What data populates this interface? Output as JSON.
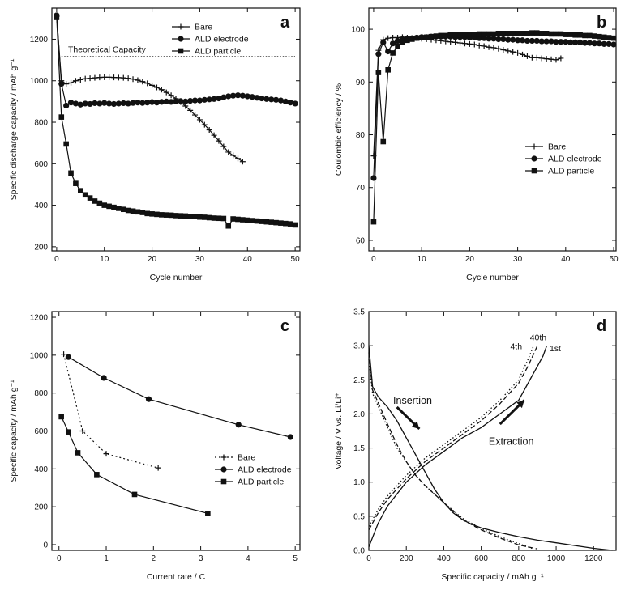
{
  "chart_data": [
    {
      "panel": "a",
      "type": "line",
      "title": "",
      "letter": "a",
      "xlabel": "Cycle number",
      "ylabel": "Specific discharge capacity / mAh g⁻¹",
      "xlim": [
        -1,
        51
      ],
      "ylim": [
        180,
        1350
      ],
      "xticks": [
        0,
        10,
        20,
        30,
        40,
        50
      ],
      "yticks": [
        200,
        400,
        600,
        800,
        1000,
        1200
      ],
      "legend": "top-right",
      "reference_line": {
        "label": "Theoretical Capacity",
        "y": 1117
      },
      "series": [
        {
          "name": "Bare",
          "marker": "plus",
          "dash": "",
          "x": [
            0,
            1,
            2,
            3,
            4,
            5,
            6,
            7,
            8,
            9,
            10,
            11,
            12,
            13,
            14,
            15,
            16,
            17,
            18,
            19,
            20,
            21,
            22,
            23,
            24,
            25,
            26,
            27,
            28,
            29,
            30,
            31,
            32,
            33,
            34,
            35,
            36,
            37,
            38,
            39
          ],
          "y": [
            1310,
            1000,
            985,
            990,
            1000,
            1005,
            1010,
            1012,
            1014,
            1016,
            1017,
            1017,
            1016,
            1015,
            1014,
            1012,
            1008,
            1003,
            996,
            988,
            978,
            968,
            957,
            944,
            930,
            914,
            897,
            878,
            857,
            835,
            812,
            788,
            763,
            737,
            710,
            683,
            656,
            640,
            625,
            610
          ]
        },
        {
          "name": "ALD electrode",
          "marker": "circle",
          "dash": "",
          "x": [
            0,
            1,
            2,
            3,
            4,
            5,
            6,
            7,
            8,
            9,
            10,
            11,
            12,
            13,
            14,
            15,
            16,
            17,
            18,
            19,
            20,
            21,
            22,
            23,
            24,
            25,
            26,
            27,
            28,
            29,
            30,
            31,
            32,
            33,
            34,
            35,
            36,
            37,
            38,
            39,
            40,
            41,
            42,
            43,
            44,
            45,
            46,
            47,
            48,
            49,
            50
          ],
          "y": [
            1315,
            985,
            880,
            895,
            890,
            885,
            890,
            888,
            892,
            890,
            893,
            890,
            888,
            890,
            892,
            890,
            893,
            895,
            893,
            895,
            897,
            895,
            898,
            900,
            898,
            900,
            902,
            900,
            903,
            905,
            905,
            908,
            910,
            912,
            915,
            920,
            925,
            928,
            930,
            928,
            925,
            922,
            918,
            915,
            912,
            910,
            908,
            905,
            900,
            895,
            890
          ]
        },
        {
          "name": "ALD particle",
          "marker": "square",
          "dash": "",
          "x": [
            0,
            1,
            2,
            3,
            4,
            5,
            6,
            7,
            8,
            9,
            10,
            11,
            12,
            13,
            14,
            15,
            16,
            17,
            18,
            19,
            20,
            21,
            22,
            23,
            24,
            25,
            26,
            27,
            28,
            29,
            30,
            31,
            32,
            33,
            34,
            35,
            36,
            37,
            38,
            39,
            40,
            41,
            42,
            43,
            44,
            45,
            46,
            47,
            48,
            49,
            50
          ],
          "y": [
            1305,
            825,
            695,
            555,
            505,
            470,
            450,
            435,
            420,
            410,
            400,
            395,
            390,
            385,
            380,
            375,
            372,
            368,
            365,
            360,
            358,
            356,
            354,
            353,
            352,
            350,
            349,
            348,
            346,
            345,
            343,
            342,
            340,
            338,
            337,
            336,
            300,
            334,
            332,
            330,
            328,
            326,
            324,
            322,
            320,
            318,
            316,
            314,
            312,
            310,
            305
          ]
        }
      ]
    },
    {
      "panel": "b",
      "type": "line",
      "title": "",
      "letter": "b",
      "xlabel": "Cycle number",
      "ylabel": "Coulombic efficiency / %",
      "xlim": [
        -1,
        50.5
      ],
      "ylim": [
        58,
        104
      ],
      "xticks": [
        0,
        10,
        20,
        30,
        40,
        50
      ],
      "yticks": [
        60,
        70,
        80,
        90,
        100
      ],
      "legend": "center-right",
      "series": [
        {
          "name": "Bare",
          "marker": "plus",
          "dash": "",
          "x": [
            0,
            1,
            2,
            3,
            4,
            5,
            6,
            7,
            8,
            9,
            10,
            11,
            12,
            13,
            14,
            15,
            16,
            17,
            18,
            19,
            20,
            21,
            22,
            23,
            24,
            25,
            26,
            27,
            28,
            29,
            30,
            31,
            32,
            33,
            34,
            35,
            36,
            37,
            38,
            39
          ],
          "y": [
            76,
            96,
            98,
            98.3,
            98.4,
            98.4,
            98.5,
            98.4,
            98.3,
            98.3,
            98.2,
            98.1,
            98,
            97.9,
            97.8,
            97.7,
            97.6,
            97.5,
            97.4,
            97.3,
            97.2,
            97.1,
            96.9,
            96.8,
            96.6,
            96.5,
            96.3,
            96.1,
            95.9,
            95.7,
            95.5,
            95.2,
            94.9,
            94.6,
            94.6,
            94.5,
            94.4,
            94.3,
            94.2,
            94.5
          ]
        },
        {
          "name": "ALD electrode",
          "marker": "circle",
          "dash": "",
          "x": [
            0,
            1,
            2,
            3,
            4,
            5,
            6,
            7,
            8,
            9,
            10,
            11,
            12,
            13,
            14,
            15,
            16,
            17,
            18,
            19,
            20,
            21,
            22,
            23,
            24,
            25,
            26,
            27,
            28,
            29,
            30,
            31,
            32,
            33,
            34,
            35,
            36,
            37,
            38,
            39,
            40,
            41,
            42,
            43,
            44,
            45,
            46,
            47,
            48,
            49,
            50
          ],
          "y": [
            71.8,
            95.3,
            97.5,
            95.8,
            97.3,
            97.8,
            98.1,
            98.2,
            98.3,
            98.4,
            98.5,
            98.5,
            98.6,
            98.6,
            98.6,
            98.6,
            98.6,
            98.5,
            98.5,
            98.5,
            98.4,
            98.4,
            98.3,
            98.3,
            98.2,
            98.2,
            98.1,
            98.1,
            98.0,
            98.0,
            97.9,
            97.9,
            97.8,
            97.8,
            97.8,
            97.7,
            97.7,
            97.7,
            97.6,
            97.6,
            97.6,
            97.5,
            97.5,
            97.5,
            97.4,
            97.4,
            97.3,
            97.3,
            97.2,
            97.2,
            97.1
          ]
        },
        {
          "name": "ALD particle",
          "marker": "square",
          "dash": "",
          "x": [
            0,
            1,
            2,
            3,
            4,
            5,
            6,
            7,
            8,
            9,
            10,
            11,
            12,
            13,
            14,
            15,
            16,
            17,
            18,
            19,
            20,
            21,
            22,
            23,
            24,
            25,
            26,
            27,
            28,
            29,
            30,
            31,
            32,
            33,
            34,
            35,
            36,
            37,
            38,
            39,
            40,
            41,
            42,
            43,
            44,
            45,
            46,
            47,
            48,
            49,
            50
          ],
          "y": [
            63.5,
            91.8,
            78.7,
            92.3,
            95.5,
            96.8,
            97.5,
            97.9,
            98.1,
            98.3,
            98.4,
            98.5,
            98.6,
            98.7,
            98.8,
            98.8,
            98.9,
            98.9,
            98.9,
            99.0,
            99.0,
            99.0,
            99.1,
            99.1,
            99.1,
            99.1,
            99.2,
            99.2,
            99.2,
            99.2,
            99.2,
            99.2,
            99.2,
            99.3,
            99.3,
            99.2,
            99.2,
            99.1,
            99.1,
            99.1,
            99.0,
            99.0,
            98.9,
            98.9,
            98.8,
            98.8,
            98.7,
            98.6,
            98.5,
            98.4,
            98.3
          ]
        }
      ]
    },
    {
      "panel": "c",
      "type": "line",
      "title": "",
      "letter": "c",
      "xlabel": "Current rate / C",
      "ylabel": "Specific capacity / mAh g⁻¹",
      "xlim": [
        -0.15,
        5.1
      ],
      "ylim": [
        -30,
        1230
      ],
      "xticks": [
        0,
        1,
        2,
        3,
        4,
        5
      ],
      "yticks": [
        0,
        200,
        400,
        600,
        800,
        1000,
        1200
      ],
      "legend": "center-right",
      "series": [
        {
          "name": "Bare",
          "marker": "plus",
          "dash": "2,3",
          "x": [
            0.1,
            0.5,
            1.0,
            2.1
          ],
          "y": [
            1005,
            600,
            480,
            405
          ]
        },
        {
          "name": "ALD electrode",
          "marker": "circle",
          "dash": "",
          "x": [
            0.2,
            0.95,
            1.9,
            3.8,
            4.9
          ],
          "y": [
            990,
            880,
            768,
            633,
            568
          ]
        },
        {
          "name": "ALD particle",
          "marker": "square",
          "dash": "",
          "x": [
            0.05,
            0.2,
            0.4,
            0.8,
            1.6,
            3.15
          ],
          "y": [
            675,
            595,
            485,
            370,
            265,
            165
          ]
        }
      ]
    },
    {
      "panel": "d",
      "type": "line",
      "title": "",
      "letter": "d",
      "xlabel": "Specific capacity / mAh g⁻¹",
      "ylabel": "Voltage / V vs. Li/Li⁺",
      "xlim": [
        0,
        1320
      ],
      "ylim": [
        0,
        3.5
      ],
      "xticks": [
        0,
        200,
        400,
        600,
        800,
        1000,
        1200
      ],
      "yticks": [
        0.0,
        0.5,
        1.0,
        1.5,
        2.0,
        2.5,
        3.0,
        3.5
      ],
      "legend": "none",
      "annotations": [
        {
          "text": "Insertion",
          "at": [
            130,
            2.15
          ]
        },
        {
          "text": "Extraction",
          "at": [
            640,
            1.55
          ]
        },
        {
          "text": "4th",
          "at": [
            755,
            2.95
          ]
        },
        {
          "text": "40th",
          "at": [
            860,
            3.08
          ]
        },
        {
          "text": "1st",
          "at": [
            965,
            2.92
          ]
        }
      ],
      "arrows": [
        {
          "from": [
            150,
            2.1
          ],
          "to": [
            270,
            1.78
          ]
        },
        {
          "from": [
            700,
            1.85
          ],
          "to": [
            830,
            2.2
          ]
        }
      ],
      "series": [
        {
          "name": "1st discharge",
          "marker": "none",
          "dash": "",
          "x": [
            0,
            20,
            50,
            100,
            150,
            200,
            250,
            300,
            350,
            400,
            450,
            500,
            550,
            600,
            700,
            800,
            900,
            1000,
            1100,
            1200,
            1300
          ],
          "y": [
            3.0,
            2.4,
            2.25,
            2.1,
            1.9,
            1.65,
            1.4,
            1.15,
            0.9,
            0.7,
            0.55,
            0.45,
            0.38,
            0.33,
            0.26,
            0.2,
            0.15,
            0.11,
            0.07,
            0.03,
            0.0
          ]
        },
        {
          "name": "1st charge",
          "marker": "none",
          "dash": "",
          "x": [
            0,
            50,
            100,
            200,
            300,
            400,
            500,
            600,
            700,
            800,
            850,
            900,
            930,
            950
          ],
          "y": [
            0.05,
            0.4,
            0.65,
            1.0,
            1.25,
            1.45,
            1.65,
            1.8,
            2.0,
            2.2,
            2.45,
            2.7,
            2.85,
            3.0
          ]
        },
        {
          "name": "4th discharge",
          "marker": "none",
          "dash": "6,3",
          "x": [
            0,
            20,
            60,
            100,
            150,
            200,
            250,
            300,
            400,
            500,
            600,
            700,
            800,
            900
          ],
          "y": [
            2.9,
            2.35,
            2.1,
            1.85,
            1.55,
            1.3,
            1.1,
            0.95,
            0.7,
            0.45,
            0.3,
            0.18,
            0.08,
            0.02
          ]
        },
        {
          "name": "4th charge",
          "marker": "none",
          "dash": "6,3",
          "x": [
            0,
            50,
            100,
            200,
            300,
            400,
            500,
            600,
            700,
            800,
            850,
            900
          ],
          "y": [
            0.3,
            0.55,
            0.75,
            1.05,
            1.3,
            1.5,
            1.7,
            1.9,
            2.15,
            2.45,
            2.7,
            3.0
          ]
        },
        {
          "name": "40th discharge",
          "marker": "none",
          "dash": "1.5,2.5",
          "x": [
            0,
            20,
            60,
            100,
            150,
            200,
            250,
            300,
            400,
            500,
            600,
            700,
            800,
            870
          ],
          "y": [
            2.8,
            2.3,
            2.05,
            1.8,
            1.5,
            1.3,
            1.1,
            0.95,
            0.7,
            0.47,
            0.32,
            0.2,
            0.1,
            0.03
          ]
        },
        {
          "name": "40th charge",
          "marker": "none",
          "dash": "1.5,2.5",
          "x": [
            0,
            50,
            100,
            200,
            300,
            400,
            500,
            600,
            700,
            800,
            850,
            880
          ],
          "y": [
            0.35,
            0.6,
            0.8,
            1.1,
            1.35,
            1.55,
            1.75,
            1.95,
            2.2,
            2.5,
            2.8,
            3.0
          ]
        }
      ]
    }
  ]
}
